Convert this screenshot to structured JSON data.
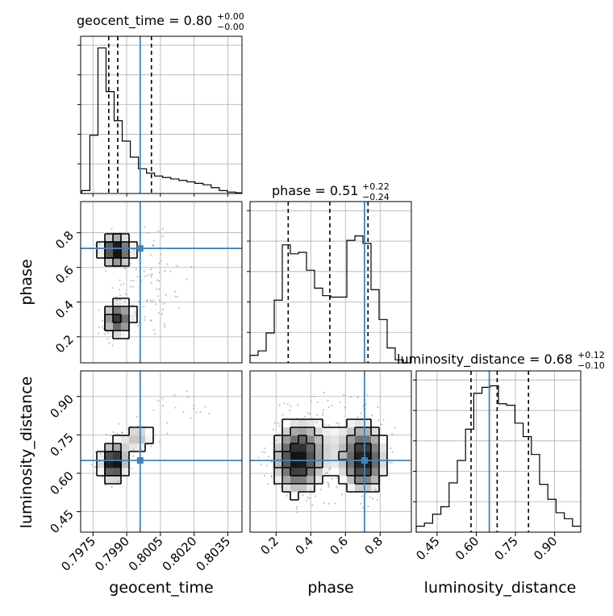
{
  "colors": {
    "truth": "#4682b4",
    "hist": "#000000",
    "grid": "#b0b0b0"
  },
  "chart_data": {
    "type": "corner",
    "parameters": [
      "geocent_time",
      "phase",
      "luminosity_distance"
    ],
    "titles": {
      "geocent_time": {
        "text": "geocent_time = 0.80",
        "plus": "+0.00",
        "minus": "−0.00"
      },
      "phase": {
        "text": "phase = 0.51",
        "plus": "+0.22",
        "minus": "−0.24"
      },
      "luminosity_distance": {
        "text": "luminosity_distance = 0.68",
        "plus": "+0.12",
        "minus": "−0.10"
      }
    },
    "axis_labels": {
      "x": [
        "geocent_time",
        "phase",
        "luminosity_distance"
      ],
      "y": [
        "phase",
        "luminosity_distance"
      ]
    },
    "ranges": {
      "geocent_time": [
        0.79695,
        0.80413
      ],
      "phase": [
        0.05,
        0.98
      ],
      "luminosity_distance": [
        0.37,
        1.0
      ]
    },
    "ticks": {
      "geocent_time": [
        "0.7975",
        "0.7990",
        "0.8005",
        "0.8020",
        "0.8035"
      ],
      "geocent_time_values": [
        0.7975,
        0.799,
        0.8005,
        0.802,
        0.8035
      ],
      "phase_x": [
        "0.2",
        "0.4",
        "0.6",
        "0.8"
      ],
      "phase_x_values": [
        0.2,
        0.4,
        0.6,
        0.8
      ],
      "phase_y": [
        "0.2",
        "0.4",
        "0.6",
        "0.8"
      ],
      "phase_y_values": [
        0.2,
        0.4,
        0.6,
        0.8
      ],
      "luminosity_distance": [
        "0.45",
        "0.60",
        "0.75",
        "0.90"
      ],
      "luminosity_distance_values": [
        0.45,
        0.6,
        0.75,
        0.9
      ]
    },
    "truths": {
      "geocent_time": 0.7996,
      "phase": 0.71,
      "luminosity_distance": 0.65
    },
    "quantile_lines": {
      "geocent_time": [
        0.7982,
        0.7986,
        0.8001
      ],
      "phase": [
        0.27,
        0.51,
        0.73
      ],
      "luminosity_distance": [
        0.58,
        0.68,
        0.8
      ]
    },
    "histograms": {
      "geocent_time": {
        "bin_edges": [
          0.797,
          0.79736,
          0.79772,
          0.79808,
          0.79844,
          0.7988,
          0.79916,
          0.79952,
          0.79988,
          0.80024,
          0.8006,
          0.80096,
          0.80132,
          0.80168,
          0.80204,
          0.8024,
          0.80276,
          0.80312,
          0.80348,
          0.80384,
          0.8042
        ],
        "counts": [
          0.02,
          0.4,
          1.0,
          0.7,
          0.5,
          0.36,
          0.25,
          0.17,
          0.14,
          0.12,
          0.11,
          0.1,
          0.09,
          0.08,
          0.07,
          0.06,
          0.04,
          0.02,
          0.01,
          0.005
        ]
      },
      "phase": {
        "bin_edges": [
          0.05,
          0.0965,
          0.143,
          0.1895,
          0.236,
          0.2825,
          0.329,
          0.3755,
          0.422,
          0.4685,
          0.515,
          0.5615,
          0.608,
          0.6545,
          0.701,
          0.7475,
          0.794,
          0.8405,
          0.887,
          0.9335,
          0.98
        ],
        "counts": [
          0.05,
          0.08,
          0.2,
          0.42,
          0.79,
          0.73,
          0.74,
          0.62,
          0.5,
          0.45,
          0.44,
          0.44,
          0.82,
          0.85,
          0.8,
          0.49,
          0.29,
          0.1,
          0.02,
          0.0
        ]
      },
      "luminosity_distance": {
        "bin_edges": [
          0.37,
          0.4015,
          0.433,
          0.4645,
          0.496,
          0.5275,
          0.559,
          0.5905,
          0.622,
          0.6535,
          0.685,
          0.7165,
          0.748,
          0.7795,
          0.811,
          0.8425,
          0.874,
          0.9055,
          0.937,
          0.9685,
          1.0
        ],
        "counts": [
          0.04,
          0.06,
          0.12,
          0.17,
          0.33,
          0.48,
          0.69,
          0.93,
          0.97,
          0.98,
          0.86,
          0.85,
          0.73,
          0.64,
          0.52,
          0.32,
          0.22,
          0.13,
          0.09,
          0.04
        ]
      }
    },
    "density_2d": {
      "phase_vs_geocent_time": {
        "modes": [
          {
            "x": 0.7985,
            "y": 0.7,
            "sx": 0.00045,
            "sy": 0.06,
            "w": 1.0
          },
          {
            "x": 0.7986,
            "y": 0.3,
            "sx": 0.00045,
            "sy": 0.07,
            "w": 0.85
          },
          {
            "x": 0.8001,
            "y": 0.55,
            "sx": 0.0011,
            "sy": 0.2,
            "w": 0.25
          }
        ]
      },
      "luminosity_distance_vs_geocent_time": {
        "modes": [
          {
            "x": 0.7984,
            "y": 0.64,
            "sx": 0.0004,
            "sy": 0.05,
            "w": 1.0
          },
          {
            "x": 0.7995,
            "y": 0.74,
            "sx": 0.0006,
            "sy": 0.05,
            "w": 0.45
          },
          {
            "x": 0.8015,
            "y": 0.86,
            "sx": 0.0009,
            "sy": 0.05,
            "w": 0.2
          }
        ]
      },
      "luminosity_distance_vs_phase": {
        "modes": [
          {
            "x": 0.32,
            "y": 0.65,
            "sx": 0.09,
            "sy": 0.09,
            "w": 1.0
          },
          {
            "x": 0.71,
            "y": 0.65,
            "sx": 0.08,
            "sy": 0.09,
            "w": 1.0
          },
          {
            "x": 0.5,
            "y": 0.72,
            "sx": 0.2,
            "sy": 0.12,
            "w": 0.35
          }
        ]
      }
    },
    "grid": true
  }
}
